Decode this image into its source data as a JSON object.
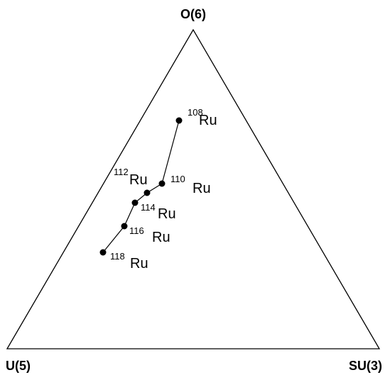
{
  "vertices": {
    "top": "O(6)",
    "left": "U(5)",
    "right": "SU(3)"
  },
  "nodes": [
    {
      "mass": "108",
      "element": "Ru"
    },
    {
      "mass": "110",
      "element": "Ru"
    },
    {
      "mass": "112",
      "element": "Ru"
    },
    {
      "mass": "114",
      "element": "Ru"
    },
    {
      "mass": "116",
      "element": "Ru"
    },
    {
      "mass": "118",
      "element": "Ru"
    }
  ]
}
